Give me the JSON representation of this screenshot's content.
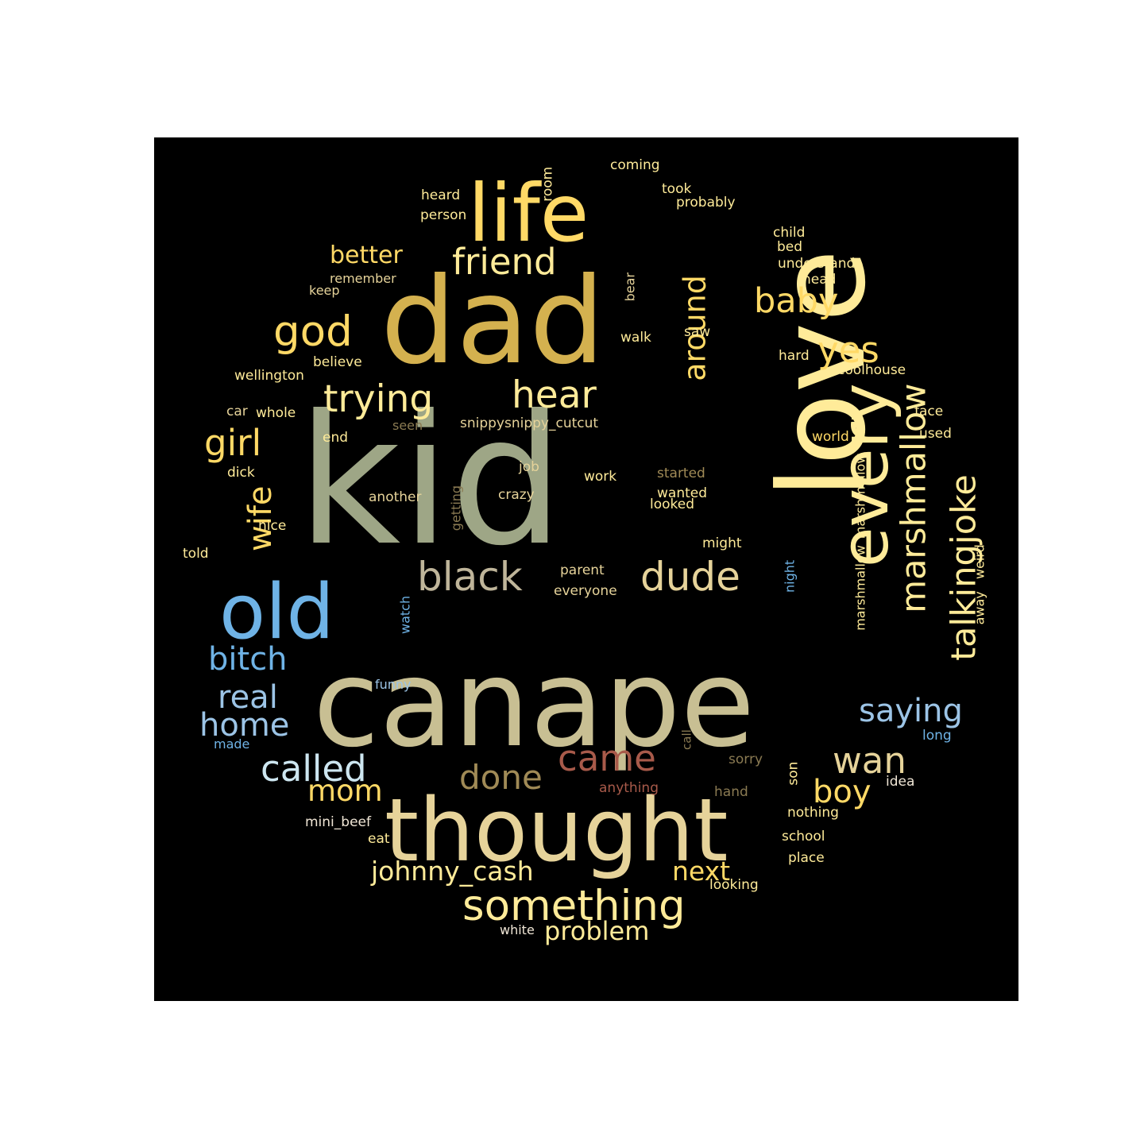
{
  "word_cloud": {
    "background": "#000000",
    "palette": {
      "gold": "#ffd966",
      "cream": "#ffeb99",
      "sand": "#e6d39a",
      "khaki": "#c8bf93",
      "tan": "#bfb59a",
      "mustard": "#d4b14f",
      "sage": "#9ea686",
      "bronze": "#a08a56",
      "dim": "#8a7a52",
      "blue": "#6fb3e6",
      "lightblue": "#9cc4e6",
      "paleblue": "#cde6f0",
      "rust": "#a85a4a",
      "white": "#f0e6d6"
    },
    "words": [
      {
        "text": "kid",
        "color": "sage"
      },
      {
        "text": "canape",
        "color": "khaki"
      },
      {
        "text": "dad",
        "color": "mustard"
      },
      {
        "text": "love",
        "color": "cream"
      },
      {
        "text": "thought",
        "color": "sand"
      },
      {
        "text": "life",
        "color": "gold"
      },
      {
        "text": "every",
        "color": "cream"
      },
      {
        "text": "old",
        "color": "blue"
      },
      {
        "text": "friend",
        "color": "cream"
      },
      {
        "text": "trying",
        "color": "cream"
      },
      {
        "text": "hear",
        "color": "cream"
      },
      {
        "text": "god",
        "color": "gold"
      },
      {
        "text": "black",
        "color": "tan"
      },
      {
        "text": "dude",
        "color": "sand"
      },
      {
        "text": "something",
        "color": "cream"
      },
      {
        "text": "marshmallow",
        "color": "cream"
      },
      {
        "text": "talkingjoke",
        "color": "cream"
      },
      {
        "text": "around",
        "color": "gold"
      },
      {
        "text": "baby",
        "color": "gold"
      },
      {
        "text": "yes",
        "color": "gold"
      },
      {
        "text": "girl",
        "color": "gold"
      },
      {
        "text": "wife",
        "color": "gold"
      },
      {
        "text": "better",
        "color": "gold"
      },
      {
        "text": "bitch",
        "color": "blue"
      },
      {
        "text": "real",
        "color": "lightblue"
      },
      {
        "text": "home",
        "color": "lightblue"
      },
      {
        "text": "saying",
        "color": "lightblue"
      },
      {
        "text": "called",
        "color": "paleblue"
      },
      {
        "text": "came",
        "color": "rust"
      },
      {
        "text": "done",
        "color": "bronze"
      },
      {
        "text": "wan",
        "color": "sand"
      },
      {
        "text": "boy",
        "color": "gold"
      },
      {
        "text": "mom",
        "color": "gold"
      },
      {
        "text": "johnny_cash",
        "color": "cream"
      },
      {
        "text": "next",
        "color": "gold"
      },
      {
        "text": "problem",
        "color": "cream"
      },
      {
        "text": "coming",
        "color": "cream"
      },
      {
        "text": "took",
        "color": "cream"
      },
      {
        "text": "probably",
        "color": "cream"
      },
      {
        "text": "heard",
        "color": "cream"
      },
      {
        "text": "person",
        "color": "cream"
      },
      {
        "text": "room",
        "color": "cream"
      },
      {
        "text": "child",
        "color": "cream"
      },
      {
        "text": "bed",
        "color": "cream"
      },
      {
        "text": "understand",
        "color": "cream"
      },
      {
        "text": "head",
        "color": "cream"
      },
      {
        "text": "remember",
        "color": "sand"
      },
      {
        "text": "keep",
        "color": "sand"
      },
      {
        "text": "bear",
        "color": "sand"
      },
      {
        "text": "walk",
        "color": "cream"
      },
      {
        "text": "saw",
        "color": "cream"
      },
      {
        "text": "hard",
        "color": "cream"
      },
      {
        "text": "coolhouse",
        "color": "cream"
      },
      {
        "text": "believe",
        "color": "cream"
      },
      {
        "text": "wellington",
        "color": "cream"
      },
      {
        "text": "car",
        "color": "sand"
      },
      {
        "text": "whole",
        "color": "cream"
      },
      {
        "text": "seen",
        "color": "dim"
      },
      {
        "text": "snippysnippy_cutcut",
        "color": "sand"
      },
      {
        "text": "end",
        "color": "cream"
      },
      {
        "text": "face",
        "color": "cream"
      },
      {
        "text": "used",
        "color": "cream"
      },
      {
        "text": "world",
        "color": "gold"
      },
      {
        "text": "dick",
        "color": "cream"
      },
      {
        "text": "job",
        "color": "sand"
      },
      {
        "text": "work",
        "color": "cream"
      },
      {
        "text": "started",
        "color": "bronze"
      },
      {
        "text": "wanted",
        "color": "cream"
      },
      {
        "text": "looked",
        "color": "cream"
      },
      {
        "text": "another",
        "color": "sand"
      },
      {
        "text": "getting",
        "color": "dim"
      },
      {
        "text": "crazy",
        "color": "sand"
      },
      {
        "text": "marshmallow_marshmallow",
        "color": "cream"
      },
      {
        "text": "nice",
        "color": "cream"
      },
      {
        "text": "might",
        "color": "cream"
      },
      {
        "text": "told",
        "color": "cream"
      },
      {
        "text": "parent",
        "color": "sand"
      },
      {
        "text": "everyone",
        "color": "sand"
      },
      {
        "text": "night",
        "color": "blue"
      },
      {
        "text": "weird",
        "color": "cream"
      },
      {
        "text": "away",
        "color": "cream"
      },
      {
        "text": "watch",
        "color": "blue"
      },
      {
        "text": "funny",
        "color": "lightblue"
      },
      {
        "text": "made",
        "color": "blue"
      },
      {
        "text": "long",
        "color": "blue"
      },
      {
        "text": "call",
        "color": "dim"
      },
      {
        "text": "sorry",
        "color": "dim"
      },
      {
        "text": "son",
        "color": "cream"
      },
      {
        "text": "idea",
        "color": "white"
      },
      {
        "text": "anything",
        "color": "rust"
      },
      {
        "text": "hand",
        "color": "dim"
      },
      {
        "text": "nothing",
        "color": "cream"
      },
      {
        "text": "mini_beef",
        "color": "white"
      },
      {
        "text": "eat",
        "color": "cream"
      },
      {
        "text": "school",
        "color": "cream"
      },
      {
        "text": "place",
        "color": "cream"
      },
      {
        "text": "looking",
        "color": "cream"
      },
      {
        "text": "white",
        "color": "white"
      }
    ]
  }
}
